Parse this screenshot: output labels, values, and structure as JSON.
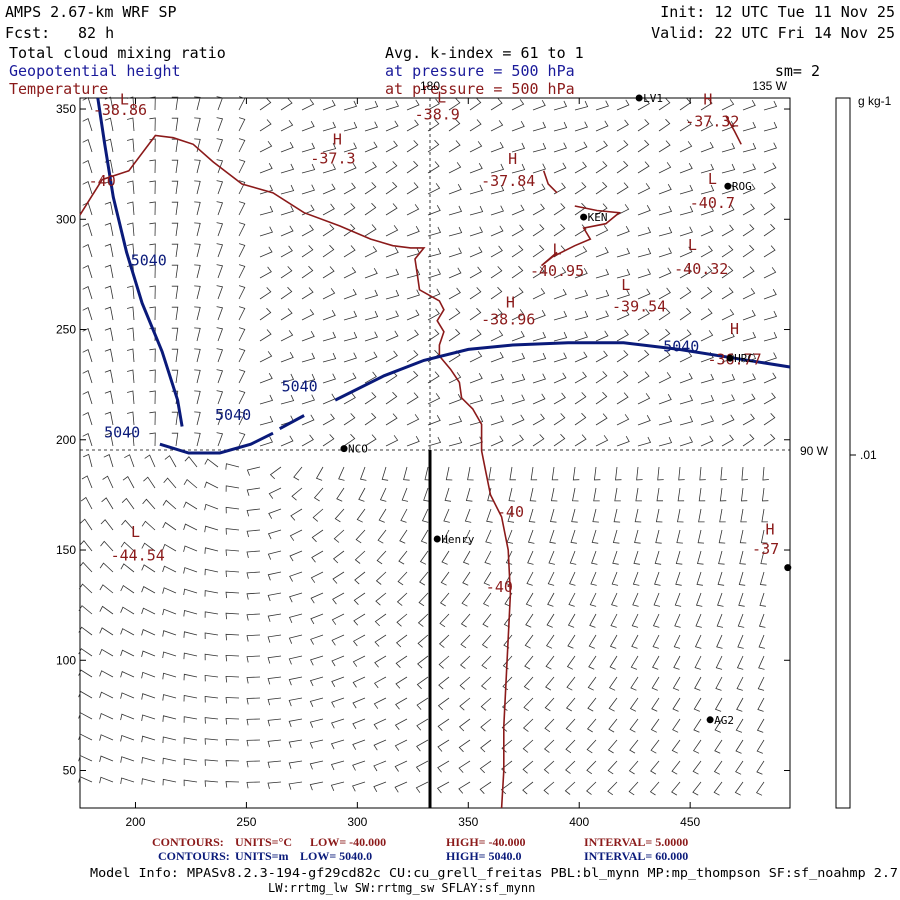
{
  "header": {
    "title": "AMPS 2.67-km WRF SP",
    "fcst_label": "Fcst:",
    "fcst_value": "82 h",
    "init": "Init: 12 UTC Tue 11 Nov 25",
    "valid": "Valid: 22 UTC Fri 14 Nov 25",
    "field1": "Total cloud mixing ratio",
    "field2": "Geopotential height",
    "field3": "Temperature",
    "avg": "Avg. k-index =  61 to   1",
    "pressure1": "at pressure =  500 hPa",
    "pressure2": "at pressure =  500 hPa",
    "sm": "sm= 2"
  },
  "colors": {
    "temperature": "#8b1a1a",
    "height": "#0a1a7a",
    "text_blue": "#1a1a9a",
    "black": "#000000"
  },
  "chart_data": {
    "type": "contour-map",
    "title": "Total cloud mixing ratio / Geopotential height / Temperature at 500 hPa",
    "x_ticks": [
      200,
      250,
      300,
      350,
      400,
      450
    ],
    "y_ticks": [
      50,
      100,
      150,
      200,
      250,
      300,
      350
    ],
    "xlim": [
      175,
      495
    ],
    "ylim": [
      33,
      355
    ],
    "meridian_labels": [
      "180",
      "135 W",
      "90 W"
    ],
    "colorbar": {
      "unit": "g kg-1",
      "tick": ".01"
    },
    "height_contour": {
      "level_label": "5040",
      "labels": [
        {
          "text": "5040",
          "x": 206,
          "y": 279
        },
        {
          "text": "5040",
          "x": 194,
          "y": 201
        },
        {
          "text": "5040",
          "x": 244,
          "y": 209
        },
        {
          "text": "5040",
          "x": 274,
          "y": 222
        },
        {
          "text": "5040",
          "x": 446,
          "y": 240
        }
      ],
      "lines": [
        [
          [
            183,
            355
          ],
          [
            186,
            335
          ],
          [
            190,
            310
          ],
          [
            196,
            285
          ],
          [
            203,
            262
          ],
          [
            212,
            240
          ],
          [
            219,
            218
          ],
          [
            221,
            206
          ]
        ],
        [
          [
            211,
            198
          ],
          [
            224,
            194
          ],
          [
            238,
            194
          ],
          [
            252,
            198
          ],
          [
            262,
            203
          ]
        ],
        [
          [
            265,
            205
          ],
          [
            276,
            211
          ]
        ],
        [
          [
            290,
            218
          ],
          [
            312,
            229
          ],
          [
            330,
            236
          ],
          [
            350,
            241
          ],
          [
            370,
            243
          ],
          [
            395,
            244
          ],
          [
            420,
            244
          ],
          [
            445,
            241
          ],
          [
            470,
            237
          ],
          [
            495,
            233
          ]
        ]
      ]
    },
    "temperature_contour": {
      "label": "-40",
      "labels": [
        {
          "text": "-40",
          "x": 185,
          "y": 315
        },
        {
          "text": "-40",
          "x": 369,
          "y": 165
        },
        {
          "text": "-40",
          "x": 364,
          "y": 131
        }
      ],
      "lines": [
        [
          [
            175,
            302
          ],
          [
            180,
            310
          ],
          [
            185,
            318
          ],
          [
            197,
            322
          ],
          [
            209,
            338
          ],
          [
            217,
            337
          ],
          [
            226,
            334
          ],
          [
            235,
            326
          ],
          [
            248,
            316
          ],
          [
            262,
            312
          ],
          [
            276,
            303
          ],
          [
            292,
            297
          ],
          [
            306,
            291
          ],
          [
            316,
            288
          ],
          [
            324,
            287
          ],
          [
            330,
            287
          ],
          [
            326,
            282
          ],
          [
            327,
            275
          ],
          [
            328,
            268
          ],
          [
            337,
            263
          ],
          [
            339,
            259
          ],
          [
            336,
            254
          ],
          [
            339,
            249
          ],
          [
            337,
            243
          ],
          [
            337,
            238
          ],
          [
            342,
            232
          ],
          [
            346,
            226
          ],
          [
            347,
            219
          ],
          [
            352,
            214
          ],
          [
            356,
            207
          ],
          [
            356,
            195
          ],
          [
            358,
            185
          ],
          [
            360,
            175
          ],
          [
            365,
            165
          ],
          [
            368,
            150
          ],
          [
            369,
            130
          ],
          [
            368,
            110
          ],
          [
            367,
            90
          ],
          [
            366,
            70
          ],
          [
            366,
            50
          ],
          [
            365,
            33
          ]
        ],
        [
          [
            466,
            347
          ],
          [
            470,
            340
          ],
          [
            473,
            334
          ]
        ],
        [
          [
            398,
            306
          ],
          [
            408,
            304
          ],
          [
            418,
            303
          ],
          [
            412,
            298
          ],
          [
            402,
            296
          ],
          [
            405,
            291
          ],
          [
            398,
            288
          ],
          [
            388,
            283
          ],
          [
            383,
            279
          ],
          [
            390,
            285
          ]
        ],
        [
          [
            384,
            322
          ],
          [
            386,
            316
          ],
          [
            390,
            312
          ]
        ]
      ]
    },
    "extrema": [
      {
        "type": "L",
        "value": "-38.86",
        "x": 193,
        "y": 349,
        "mx": 195,
        "my": 352
      },
      {
        "type": "L",
        "value": "-38.9",
        "x": 336,
        "y": 347,
        "mx": 338,
        "my": 353
      },
      {
        "type": "H",
        "value": "-37.32",
        "x": 460,
        "y": 344,
        "mx": 458,
        "my": 352
      },
      {
        "type": "H",
        "value": "-37.3",
        "x": 289,
        "y": 327,
        "mx": 291,
        "my": 334
      },
      {
        "type": "H",
        "value": "-37.84",
        "x": 368,
        "y": 317,
        "mx": 370,
        "my": 325
      },
      {
        "type": "L",
        "value": "-40.7",
        "x": 460,
        "y": 307,
        "mx": 460,
        "my": 316
      },
      {
        "type": "L",
        "value": "-40.95",
        "x": 390,
        "y": 276,
        "mx": 390,
        "my": 284
      },
      {
        "type": "L",
        "value": "-40.32",
        "x": 455,
        "y": 277,
        "mx": 451,
        "my": 286
      },
      {
        "type": "H",
        "value": "-38.96",
        "x": 368,
        "y": 254,
        "mx": 369,
        "my": 260
      },
      {
        "type": "L",
        "value": "-39.54",
        "x": 427,
        "y": 260,
        "mx": 421,
        "my": 268
      },
      {
        "type": "H",
        "value": "-36.77",
        "x": 470,
        "y": 236,
        "mx": 470,
        "my": 248
      },
      {
        "type": "L",
        "value": "-44.54",
        "x": 201,
        "y": 147,
        "mx": 200,
        "my": 156
      },
      {
        "type": "H",
        "value": "-37",
        "x": 484,
        "y": 150,
        "mx": 486,
        "my": 157
      }
    ],
    "stations": [
      {
        "name": "LV1",
        "x": 427,
        "y": 355
      },
      {
        "name": "ROG",
        "x": 467,
        "y": 315
      },
      {
        "name": "KEN",
        "x": 402,
        "y": 301
      },
      {
        "name": "HRC",
        "x": 468,
        "y": 237
      },
      {
        "name": "NCO",
        "x": 294,
        "y": 196
      },
      {
        "name": "Henry",
        "x": 336,
        "y": 155
      },
      {
        "name": "",
        "x": 494,
        "y": 142
      },
      {
        "name": "AG2",
        "x": 459,
        "y": 73
      }
    ]
  },
  "footer": {
    "line1_contours": "CONTOURS:",
    "line1_units": "UNITS=°C",
    "line1_low": "LOW=  -40.000",
    "line1_high": "HIGH=  -40.000",
    "line1_interval": "INTERVAL=   5.0000",
    "line2_contours": "CONTOURS:",
    "line2_units": "UNITS=m",
    "line2_low": "LOW=  5040.0",
    "line2_high": "HIGH=  5040.0",
    "line2_interval": "INTERVAL=  60.000",
    "model1": "Model Info: MPASv8.2.3-194-gf29cd82c CU:cu_grell_freitas PBL:bl_mynn MP:mp_thompson SF:sf_noahmp 2.7",
    "model2": "LW:rrtmg_lw SW:rrtmg_sw SFLAY:sf_mynn"
  }
}
